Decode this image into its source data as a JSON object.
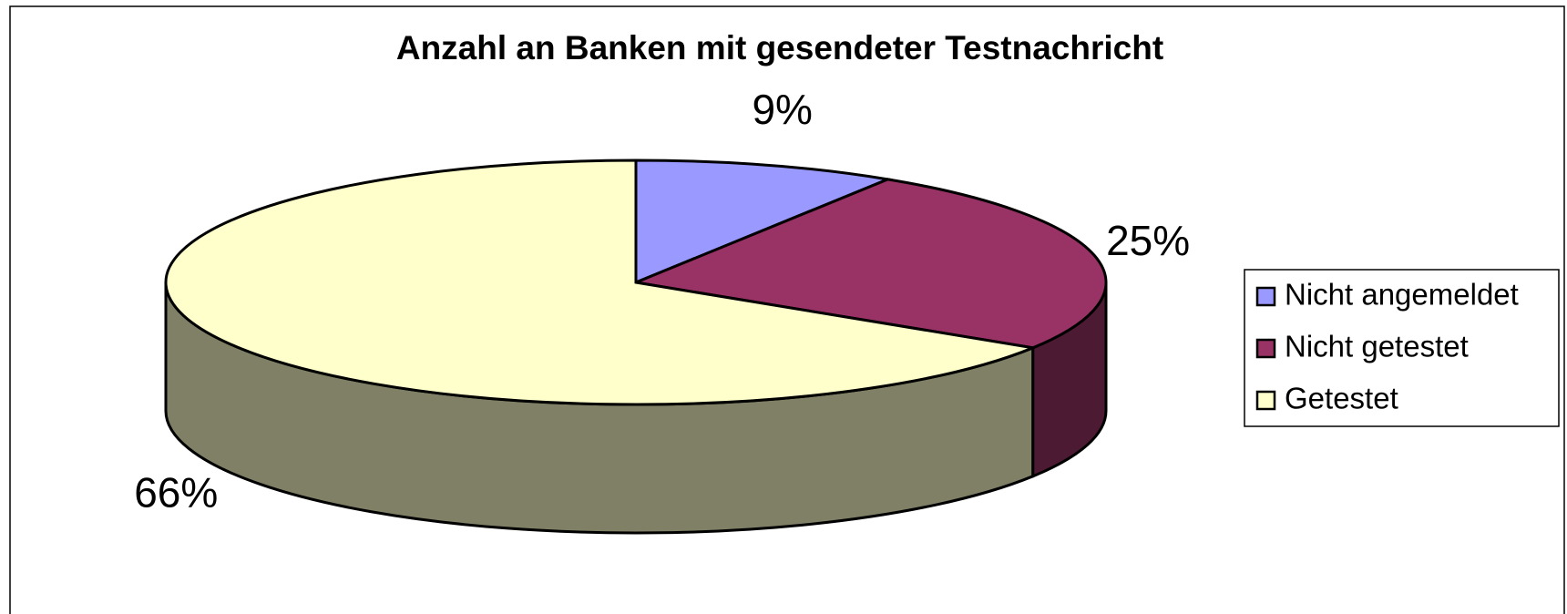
{
  "chart_data": {
    "type": "pie",
    "title": "Anzahl an Banken mit gesendeter Testnachricht",
    "categories": [
      "Nicht angemeldet",
      "Nicht getestet",
      "Getestet"
    ],
    "values": [
      9,
      25,
      66
    ],
    "value_labels": [
      "9%",
      "25%",
      "66%"
    ],
    "colors": [
      "#9999ff",
      "#993366",
      "#ffffcc"
    ],
    "legend": "right"
  }
}
